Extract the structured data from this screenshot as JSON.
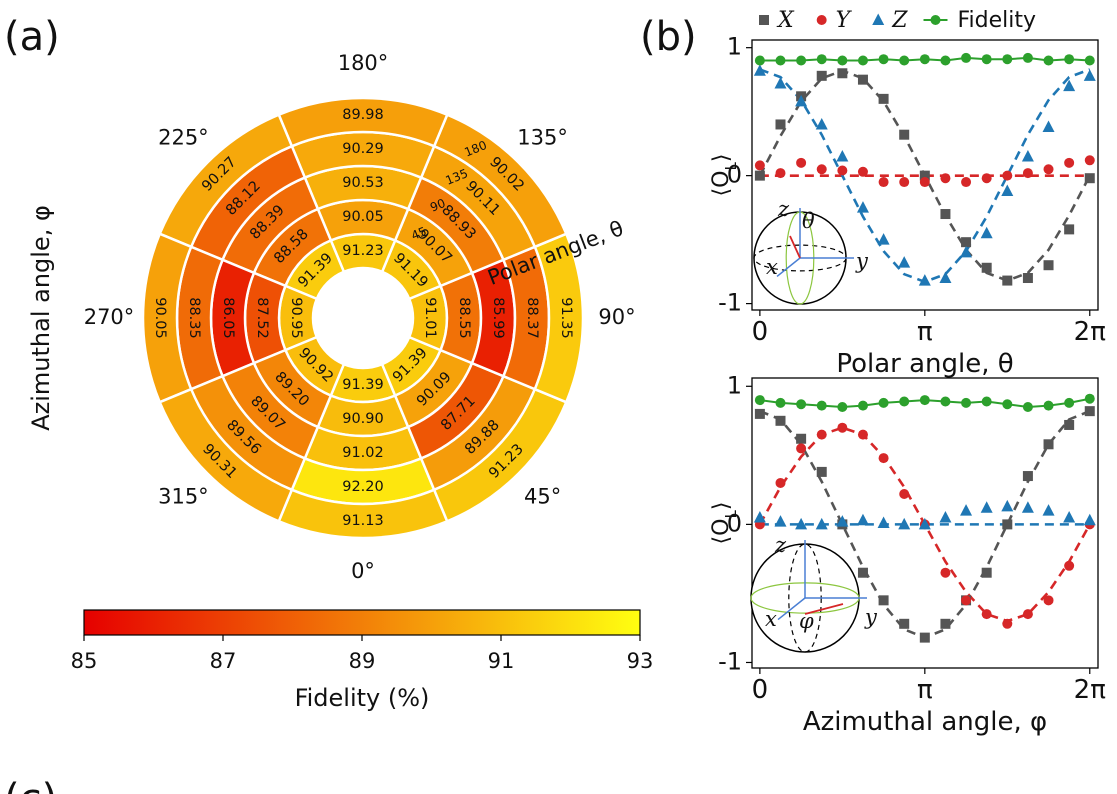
{
  "panel_labels": [
    "(a)",
    "(b)",
    "(c)"
  ],
  "chart_data": [
    {
      "type": "polar_heatmap",
      "ylabel": "Azimuthal angle, φ",
      "rlabel": "Polar angle, θ",
      "angles": [
        {
          "value": 0,
          "label": "0°"
        },
        {
          "value": 45,
          "label": "45°"
        },
        {
          "value": 90,
          "label": "90°"
        },
        {
          "value": 135,
          "label": "135°"
        },
        {
          "value": 180,
          "label": "180°"
        },
        {
          "value": 225,
          "label": "225°"
        },
        {
          "value": 270,
          "label": "270°"
        },
        {
          "value": 315,
          "label": "315°"
        }
      ],
      "rlim": [
        0,
        180
      ],
      "rticks": [
        45,
        90,
        135,
        180
      ],
      "rows": [
        [
          91.39,
          90.9,
          91.02,
          92.2,
          91.13
        ],
        [
          91.39,
          90.09,
          87.71,
          89.88,
          91.23
        ],
        [
          91.01,
          88.55,
          85.99,
          88.37,
          91.35
        ],
        [
          91.19,
          90.07,
          88.93,
          90.11,
          90.02
        ],
        [
          91.23,
          90.05,
          90.53,
          90.29,
          89.98
        ],
        [
          91.39,
          88.58,
          88.39,
          88.12,
          90.27
        ],
        [
          90.95,
          87.52,
          86.05,
          88.35,
          90.05
        ],
        [
          90.92,
          89.2,
          89.07,
          89.56,
          90.31
        ]
      ],
      "value_labels": [
        [
          "91.39",
          "90.90",
          "91.02",
          "92.20",
          "91.13"
        ],
        [
          "91.39",
          "90.09",
          "87.71",
          "89.88",
          "91.23"
        ],
        [
          "91.01",
          "88.55",
          "85.99",
          "88.37",
          "91.35"
        ],
        [
          "91.19",
          "90.07",
          "88.93",
          "90.11",
          "90.02"
        ],
        [
          "91.23",
          "90.05",
          "90.53",
          "90.29",
          "89.98"
        ],
        [
          "91.39",
          "88.58",
          "88.39",
          "88.12",
          "90.27"
        ],
        [
          "90.95",
          "87.52",
          "86.05",
          "88.35",
          "90.05"
        ],
        [
          "90.92",
          "89.20",
          "89.07",
          "89.56",
          "90.31"
        ]
      ],
      "colorbar": {
        "label": "Fidelity (%)",
        "lim": [
          85,
          93
        ],
        "ticks": [
          85,
          87,
          89,
          91,
          93
        ],
        "colors": [
          "#e60000",
          "#ffff10"
        ]
      }
    },
    {
      "type": "line",
      "xlabel": "Polar angle, θ",
      "ylabel": [
        "⟨O",
        "L",
        "⟩"
      ],
      "x": [
        0,
        0.3927,
        0.7854,
        1.1781,
        1.5708,
        1.9635,
        2.3562,
        2.7489,
        3.1416,
        3.5343,
        3.927,
        4.3197,
        4.7124,
        5.1051,
        5.4978,
        5.8905,
        6.2832
      ],
      "xlim": [
        -0.15,
        6.44
      ],
      "ylim": [
        -1.05,
        1.06
      ],
      "xticks": [
        0,
        {
          "value": 3.1416,
          "label": "π"
        },
        {
          "value": 6.2832,
          "label": "2π"
        }
      ],
      "yticks": [
        -1,
        0,
        1
      ],
      "series": [
        {
          "name": "X",
          "color": "#555555",
          "marker": "square",
          "values": [
            0.0,
            0.4,
            0.62,
            0.78,
            0.8,
            0.75,
            0.6,
            0.32,
            0.0,
            -0.3,
            -0.52,
            -0.72,
            -0.82,
            -0.8,
            -0.7,
            -0.42,
            -0.02
          ]
        },
        {
          "name": "Y",
          "color": "#d62728",
          "marker": "circle",
          "values": [
            0.08,
            0.02,
            0.1,
            0.05,
            0.04,
            0.03,
            -0.05,
            -0.05,
            -0.05,
            -0.02,
            -0.05,
            -0.02,
            0.0,
            0.02,
            0.05,
            0.1,
            0.12
          ]
        },
        {
          "name": "Z",
          "color": "#1f77b4",
          "marker": "triangle",
          "values": [
            0.82,
            0.72,
            0.58,
            0.4,
            0.15,
            -0.25,
            -0.5,
            -0.68,
            -0.82,
            -0.8,
            -0.6,
            -0.45,
            -0.12,
            0.15,
            0.38,
            0.7,
            0.78
          ]
        },
        {
          "name": "Fidelity",
          "color": "#2ca02c",
          "marker": "circle",
          "line": true,
          "values": [
            0.9,
            0.9,
            0.9,
            0.91,
            0.9,
            0.9,
            0.91,
            0.9,
            0.91,
            0.9,
            0.92,
            0.91,
            0.91,
            0.92,
            0.9,
            0.91,
            0.9
          ]
        }
      ],
      "fits": [
        {
          "color": "#555555",
          "values": [
            0,
            0.31,
            0.58,
            0.76,
            0.82,
            0.76,
            0.58,
            0.31,
            0,
            -0.31,
            -0.58,
            -0.76,
            -0.82,
            -0.76,
            -0.58,
            -0.31,
            0
          ]
        },
        {
          "color": "#d62728",
          "values": [
            0,
            0,
            0,
            0,
            0,
            0,
            0,
            0,
            0,
            0,
            0,
            0,
            0,
            0,
            0,
            0,
            0
          ]
        },
        {
          "color": "#1f77b4",
          "values": [
            0.83,
            0.77,
            0.59,
            0.32,
            0,
            -0.32,
            -0.59,
            -0.77,
            -0.83,
            -0.77,
            -0.59,
            -0.32,
            0,
            0.32,
            0.59,
            0.77,
            0.83
          ]
        }
      ],
      "inset_labels": [
        "z",
        "θ",
        "x",
        "y"
      ],
      "legend": true
    },
    {
      "type": "line",
      "xlabel": "Azimuthal angle, φ",
      "ylabel": [
        "⟨O",
        "L",
        "⟩"
      ],
      "x": [
        0,
        0.3927,
        0.7854,
        1.1781,
        1.5708,
        1.9635,
        2.3562,
        2.7489,
        3.1416,
        3.5343,
        3.927,
        4.3197,
        4.7124,
        5.1051,
        5.4978,
        5.8905,
        6.2832
      ],
      "xlim": [
        -0.15,
        6.44
      ],
      "ylim": [
        -1.04,
        1.06
      ],
      "xticks": [
        0,
        {
          "value": 3.1416,
          "label": "π"
        },
        {
          "value": 6.2832,
          "label": "2π"
        }
      ],
      "yticks": [
        -1,
        0,
        1
      ],
      "series": [
        {
          "color": "#555555",
          "marker": "square",
          "values": [
            0.8,
            0.75,
            0.62,
            0.38,
            0.0,
            -0.35,
            -0.55,
            -0.72,
            -0.82,
            -0.72,
            -0.55,
            -0.35,
            0.0,
            0.35,
            0.58,
            0.72,
            0.82
          ]
        },
        {
          "color": "#d62728",
          "marker": "circle",
          "values": [
            0.0,
            0.3,
            0.55,
            0.65,
            0.7,
            0.65,
            0.48,
            0.22,
            0.0,
            -0.35,
            -0.55,
            -0.65,
            -0.72,
            -0.65,
            -0.55,
            -0.3,
            0.0
          ]
        },
        {
          "color": "#1f77b4",
          "marker": "triangle",
          "values": [
            0.05,
            0.02,
            0.0,
            0.0,
            0.02,
            0.03,
            0.01,
            0.0,
            0.0,
            0.05,
            0.1,
            0.12,
            0.13,
            0.12,
            0.1,
            0.05,
            0.03
          ]
        },
        {
          "color": "#2ca02c",
          "marker": "circle",
          "line": true,
          "values": [
            0.9,
            0.88,
            0.87,
            0.86,
            0.85,
            0.86,
            0.88,
            0.89,
            0.9,
            0.89,
            0.88,
            0.89,
            0.87,
            0.85,
            0.86,
            0.88,
            0.91
          ]
        }
      ],
      "fits": [
        {
          "color": "#555555",
          "values": [
            0.82,
            0.76,
            0.58,
            0.31,
            0,
            -0.31,
            -0.58,
            -0.76,
            -0.82,
            -0.76,
            -0.58,
            -0.31,
            0,
            0.31,
            0.58,
            0.76,
            0.82
          ]
        },
        {
          "color": "#d62728",
          "values": [
            0,
            0.27,
            0.49,
            0.65,
            0.7,
            0.65,
            0.49,
            0.27,
            0,
            -0.27,
            -0.49,
            -0.65,
            -0.7,
            -0.65,
            -0.49,
            -0.27,
            0
          ]
        },
        {
          "color": "#1f77b4",
          "values": [
            0,
            0,
            0,
            0,
            0,
            0,
            0,
            0,
            0,
            0,
            0,
            0,
            0,
            0,
            0,
            0,
            0
          ]
        }
      ],
      "inset_labels": [
        "z",
        "x",
        "φ",
        "y"
      ],
      "legend": false
    }
  ]
}
